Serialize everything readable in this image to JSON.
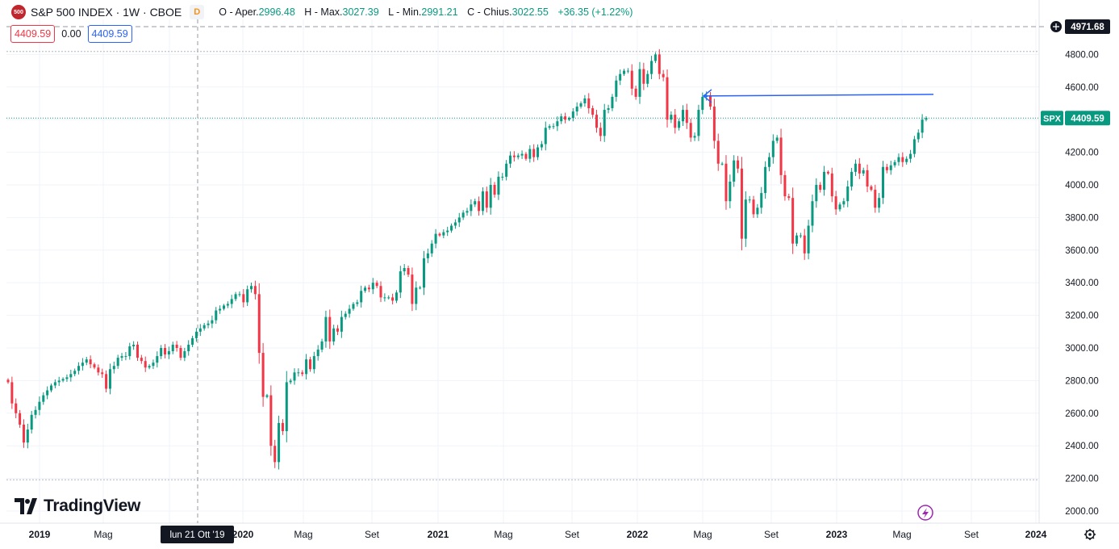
{
  "header": {
    "logo_badge": "500",
    "symbol_line": "S&P 500 INDEX · 1W · CBOE",
    "d_badge": "D",
    "ohlc": {
      "o_label": "O - Aper.",
      "o_value": "2996.48",
      "h_label": "H - Max.",
      "h_value": "3027.39",
      "l_label": "L - Min.",
      "l_value": "2991.21",
      "c_label": "C - Chius.",
      "c_value": "3022.55",
      "change": "+36.35 (+1.22%)"
    },
    "pill_left": "4409.59",
    "pill_zero": "0.00",
    "pill_right": "4409.59"
  },
  "branding": {
    "name": "TradingView"
  },
  "colors": {
    "up": "#089981",
    "down": "#f23645",
    "accent": "#2962ff",
    "grid": "#f0f3fa",
    "text": "#131722"
  },
  "chart_data": {
    "type": "candlestick",
    "timeframe": "1W",
    "y_axis": {
      "range": [
        1940,
        5000
      ],
      "ticks": [
        2000,
        2200,
        2400,
        2600,
        2800,
        3000,
        3200,
        3400,
        3600,
        3800,
        4000,
        4200,
        4400,
        4600,
        4800
      ],
      "tick_labels": [
        "2000.00",
        "2200.00",
        "2400.00",
        "2600.00",
        "2800.00",
        "3000.00",
        "3200.00",
        "3400.00",
        "3600.00",
        "3800.00",
        "4000.00",
        "4200.00",
        "4400.00",
        "4600.00",
        "4800.00"
      ]
    },
    "x_axis": {
      "labels": [
        "2019",
        "Mag",
        "Set",
        "2020",
        "Mag",
        "Set",
        "2021",
        "Mag",
        "Set",
        "2022",
        "Mag",
        "Set",
        "2023",
        "Mag",
        "Set",
        "2024"
      ],
      "crosshair_label": "lun 21 Ott '19"
    },
    "price_labels": {
      "top": "4971.68",
      "spx_tag": "SPX",
      "last": "4409.59"
    },
    "horizontal_levels": [
      4971.68,
      4818,
      4409.59,
      2192
    ],
    "arrow": {
      "from_value": 4555,
      "to_value": 4545,
      "direction": "left"
    },
    "weekly_closes": [
      2790,
      2660,
      2600,
      2530,
      2420,
      2500,
      2590,
      2620,
      2670,
      2710,
      2740,
      2770,
      2790,
      2800,
      2810,
      2820,
      2840,
      2860,
      2890,
      2910,
      2930,
      2900,
      2880,
      2850,
      2840,
      2750,
      2870,
      2890,
      2940,
      2950,
      2950,
      3010,
      3020,
      2940,
      2920,
      2880,
      2890,
      2910,
      2950,
      3000,
      2960,
      2980,
      3020,
      3000,
      2940,
      2980,
      3020,
      3060,
      3100,
      3120,
      3140,
      3150,
      3170,
      3230,
      3240,
      3260,
      3270,
      3300,
      3330,
      3330,
      3280,
      3360,
      3380,
      3330,
      2970,
      2700,
      2710,
      2400,
      2300,
      2540,
      2490,
      2790,
      2800,
      2850,
      2850,
      2840,
      2930,
      2870,
      2950,
      2990,
      3040,
      3190,
      3040,
      3120,
      3100,
      3190,
      3210,
      3240,
      3270,
      3280,
      3350,
      3370,
      3360,
      3400,
      3380,
      3310,
      3310,
      3310,
      3290,
      3340,
      3470,
      3490,
      3450,
      3270,
      3370,
      3370,
      3550,
      3580,
      3640,
      3700,
      3690,
      3710,
      3720,
      3750,
      3770,
      3800,
      3830,
      3840,
      3880,
      3900,
      3840,
      3960,
      3860,
      4000,
      3940,
      4050,
      4050,
      4130,
      4180,
      4170,
      4180,
      4190,
      4160,
      4220,
      4170,
      4230,
      4250,
      4350,
      4360,
      4360,
      4390,
      4420,
      4400,
      4410,
      4450,
      4480,
      4500,
      4530,
      4470,
      4430,
      4350,
      4300,
      4460,
      4470,
      4540,
      4640,
      4680,
      4700,
      4700,
      4590,
      4540,
      4710,
      4620,
      4680,
      4760,
      4800,
      4680,
      4660,
      4400,
      4430,
      4350,
      4390,
      4460,
      4380,
      4290,
      4300,
      4460,
      4540,
      4550,
      4480,
      4270,
      4130,
      4130,
      3900,
      4020,
      4150,
      4100,
      3670,
      3910,
      3910,
      3820,
      3860,
      3950,
      4110,
      4170,
      4270,
      4290,
      4060,
      3930,
      3920,
      3640,
      3690,
      3690,
      3580,
      3750,
      3900,
      4000,
      3970,
      4080,
      4070,
      3930,
      3850,
      3880,
      3900,
      3990,
      4080,
      4130,
      4070,
      4090,
      3990,
      3970,
      3860,
      3920,
      4110,
      4090,
      4120,
      4140,
      4170,
      4140,
      4160,
      4190,
      4280,
      4320,
      4400,
      4410
    ]
  }
}
